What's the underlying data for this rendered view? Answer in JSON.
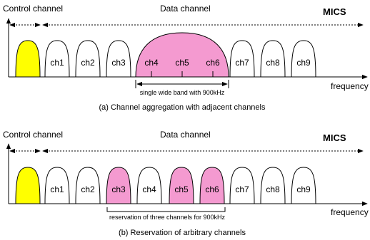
{
  "colors": {
    "control_fill": "#ffff00",
    "selected_fill": "#f49ad0",
    "line": "#000000"
  },
  "panels": [
    {
      "id": "a",
      "control_label": "Control channel",
      "data_label": "Data channel",
      "system_label": "MICS",
      "axis_label": "frequency",
      "caption": "(a) Channel aggregation with adjacent channels",
      "annotation": "single wide band with 900kHz",
      "channels": [
        "ch1",
        "ch2",
        "ch3",
        "ch4",
        "ch5",
        "ch6",
        "ch7",
        "ch8",
        "ch9"
      ]
    },
    {
      "id": "b",
      "control_label": "Control channel",
      "data_label": "Data channel",
      "system_label": "MICS",
      "axis_label": "frequency",
      "caption": "(b) Reservation of arbitrary channels",
      "annotation": "reservation of three channels for 900kHz",
      "channels": [
        "ch1",
        "ch2",
        "ch3",
        "ch4",
        "ch5",
        "ch6",
        "ch7",
        "ch8",
        "ch9"
      ],
      "selected": [
        "ch3",
        "ch5",
        "ch6"
      ]
    }
  ]
}
